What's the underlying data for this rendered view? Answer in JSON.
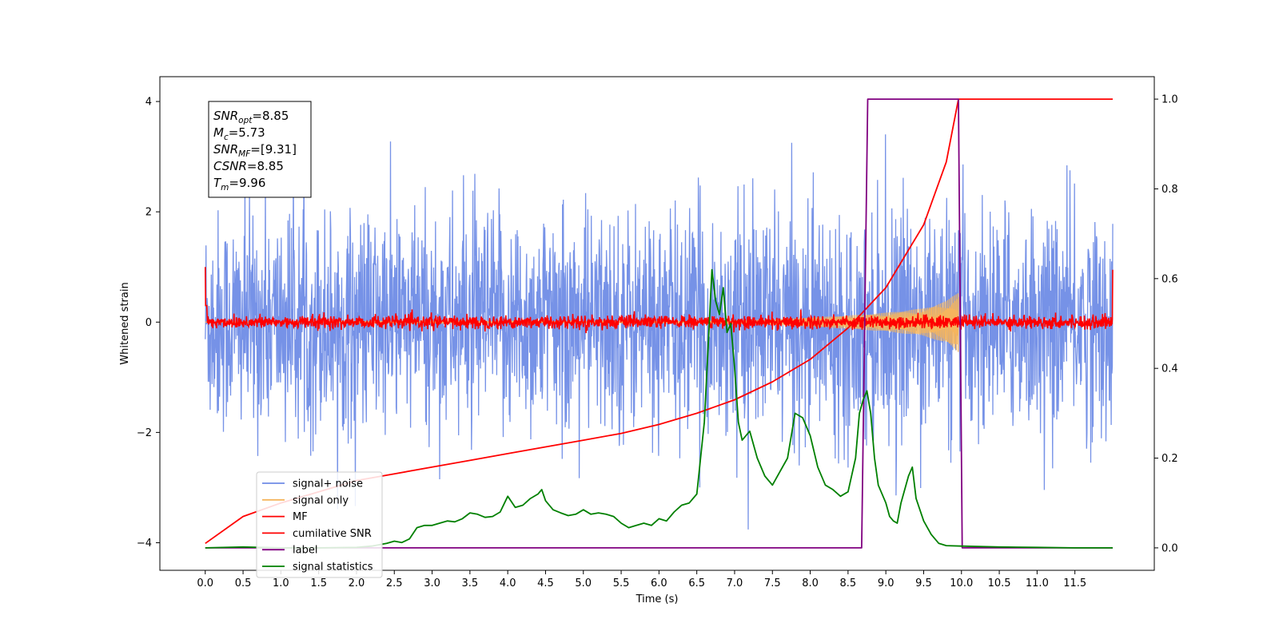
{
  "chart_data": {
    "type": "line",
    "xlabel": "Time (s)",
    "ylabel": "Whitened strain",
    "xlim": [
      -0.6,
      12.55
    ],
    "ylim": [
      -4.5,
      4.45
    ],
    "y2lim": [
      -0.05,
      1.05
    ],
    "x_ticks": [
      0.0,
      0.5,
      1.0,
      1.5,
      2.0,
      2.5,
      3.0,
      3.5,
      4.0,
      4.5,
      5.0,
      5.5,
      6.0,
      6.5,
      7.0,
      7.5,
      8.0,
      8.5,
      9.0,
      9.5,
      10.0,
      10.5,
      11.0,
      11.5
    ],
    "x_tick_labels": [
      "0.0",
      "0.5",
      "1.0",
      "1.5",
      "2.0",
      "2.5",
      "3.0",
      "3.5",
      "4.0",
      "4.5",
      "5.0",
      "5.5",
      "6.0",
      "6.5",
      "7.0",
      "7.5",
      "8.0",
      "8.5",
      "9.0",
      "9.5",
      "10.0",
      "10.5",
      "11.0",
      "11.5"
    ],
    "y_ticks": [
      -4,
      -2,
      0,
      2,
      4
    ],
    "y_tick_labels": [
      "−4",
      "−2",
      "0",
      "2",
      "4"
    ],
    "y2_ticks": [
      0.0,
      0.2,
      0.4,
      0.6,
      0.8,
      1.0
    ],
    "y2_tick_labels": [
      "0.0",
      "0.2",
      "0.4",
      "0.6",
      "0.8",
      "1.0"
    ],
    "grid": false,
    "legend_position": "lower-left",
    "annotation": {
      "lines": [
        {
          "base": "SNR",
          "sub": "opt",
          "value": "=8.85"
        },
        {
          "base": "M",
          "sub": "c",
          "value": "=5.73"
        },
        {
          "base": "SNR",
          "sub": "MF",
          "value": "=[9.31]"
        },
        {
          "base": "CSNR",
          "sub": "",
          "value": "=8.85"
        },
        {
          "base": "T",
          "sub": "m",
          "value": "=9.96"
        }
      ]
    },
    "series": [
      {
        "name": "signal+ noise",
        "color": "#6f8ce6",
        "axis": "left",
        "kind": "noise",
        "x_range": [
          0.0,
          12.0
        ],
        "approx_envelope": {
          "typical_max": 2.6,
          "typical_min": -2.4,
          "peak_max": 4.05,
          "peak_min": -4.2
        }
      },
      {
        "name": "signal only",
        "color": "#f5b55e",
        "axis": "left",
        "kind": "chirp",
        "x_range": [
          0.0,
          9.96
        ],
        "approx_amplitude": [
          [
            6.5,
            0.02
          ],
          [
            7.5,
            0.05
          ],
          [
            8.5,
            0.12
          ],
          [
            9.0,
            0.17
          ],
          [
            9.5,
            0.25
          ],
          [
            9.8,
            0.38
          ],
          [
            9.96,
            0.55
          ]
        ]
      },
      {
        "name": "MF",
        "color": "#ff0000",
        "axis": "left",
        "kind": "noise",
        "x_range": [
          0.0,
          12.0
        ],
        "approx_envelope": {
          "typical_max": 0.15,
          "typical_min": -0.12,
          "start_value": 1.0,
          "end_value": 0.95
        }
      },
      {
        "name": "cumilative SNR",
        "color": "#ff0000",
        "axis": "right",
        "points": [
          [
            0.0,
            0.01
          ],
          [
            0.5,
            0.07
          ],
          [
            1.0,
            0.1
          ],
          [
            1.5,
            0.125
          ],
          [
            2.0,
            0.15
          ],
          [
            2.5,
            0.165
          ],
          [
            3.0,
            0.18
          ],
          [
            3.5,
            0.195
          ],
          [
            4.0,
            0.21
          ],
          [
            4.5,
            0.225
          ],
          [
            5.0,
            0.24
          ],
          [
            5.5,
            0.255
          ],
          [
            6.0,
            0.275
          ],
          [
            6.5,
            0.3
          ],
          [
            7.0,
            0.33
          ],
          [
            7.5,
            0.37
          ],
          [
            8.0,
            0.42
          ],
          [
            8.5,
            0.49
          ],
          [
            9.0,
            0.58
          ],
          [
            9.5,
            0.72
          ],
          [
            9.8,
            0.86
          ],
          [
            9.96,
            1.0
          ],
          [
            10.0,
            1.0
          ],
          [
            11.0,
            1.0
          ],
          [
            12.0,
            1.0
          ]
        ]
      },
      {
        "name": "label",
        "color": "#800080",
        "axis": "right",
        "points": [
          [
            0.0,
            0.0
          ],
          [
            8.68,
            0.0
          ],
          [
            8.76,
            1.0
          ],
          [
            9.96,
            1.0
          ],
          [
            10.01,
            0.0
          ],
          [
            12.0,
            0.0
          ]
        ]
      },
      {
        "name": "signal statistics",
        "color": "#008000",
        "axis": "right",
        "points": [
          [
            0.0,
            0.0
          ],
          [
            0.5,
            0.002
          ],
          [
            1.0,
            0.0
          ],
          [
            1.5,
            0.0
          ],
          [
            2.0,
            0.001
          ],
          [
            2.2,
            0.004
          ],
          [
            2.4,
            0.01
          ],
          [
            2.5,
            0.015
          ],
          [
            2.6,
            0.012
          ],
          [
            2.7,
            0.02
          ],
          [
            2.8,
            0.045
          ],
          [
            2.9,
            0.05
          ],
          [
            3.0,
            0.05
          ],
          [
            3.1,
            0.055
          ],
          [
            3.2,
            0.06
          ],
          [
            3.3,
            0.058
          ],
          [
            3.4,
            0.065
          ],
          [
            3.5,
            0.078
          ],
          [
            3.6,
            0.075
          ],
          [
            3.7,
            0.068
          ],
          [
            3.8,
            0.07
          ],
          [
            3.9,
            0.08
          ],
          [
            4.0,
            0.115
          ],
          [
            4.1,
            0.09
          ],
          [
            4.2,
            0.095
          ],
          [
            4.3,
            0.11
          ],
          [
            4.4,
            0.12
          ],
          [
            4.45,
            0.13
          ],
          [
            4.5,
            0.105
          ],
          [
            4.6,
            0.085
          ],
          [
            4.7,
            0.078
          ],
          [
            4.8,
            0.072
          ],
          [
            4.9,
            0.075
          ],
          [
            5.0,
            0.085
          ],
          [
            5.1,
            0.075
          ],
          [
            5.2,
            0.078
          ],
          [
            5.3,
            0.075
          ],
          [
            5.4,
            0.07
          ],
          [
            5.5,
            0.055
          ],
          [
            5.6,
            0.045
          ],
          [
            5.7,
            0.05
          ],
          [
            5.8,
            0.055
          ],
          [
            5.9,
            0.05
          ],
          [
            6.0,
            0.065
          ],
          [
            6.1,
            0.06
          ],
          [
            6.2,
            0.08
          ],
          [
            6.3,
            0.095
          ],
          [
            6.4,
            0.1
          ],
          [
            6.5,
            0.12
          ],
          [
            6.55,
            0.2
          ],
          [
            6.6,
            0.28
          ],
          [
            6.65,
            0.45
          ],
          [
            6.7,
            0.62
          ],
          [
            6.75,
            0.55
          ],
          [
            6.8,
            0.52
          ],
          [
            6.85,
            0.58
          ],
          [
            6.9,
            0.48
          ],
          [
            6.95,
            0.5
          ],
          [
            7.0,
            0.4
          ],
          [
            7.05,
            0.28
          ],
          [
            7.1,
            0.24
          ],
          [
            7.2,
            0.26
          ],
          [
            7.3,
            0.2
          ],
          [
            7.4,
            0.16
          ],
          [
            7.5,
            0.14
          ],
          [
            7.6,
            0.17
          ],
          [
            7.7,
            0.2
          ],
          [
            7.8,
            0.3
          ],
          [
            7.9,
            0.29
          ],
          [
            8.0,
            0.25
          ],
          [
            8.1,
            0.18
          ],
          [
            8.2,
            0.14
          ],
          [
            8.3,
            0.13
          ],
          [
            8.4,
            0.115
          ],
          [
            8.5,
            0.125
          ],
          [
            8.6,
            0.2
          ],
          [
            8.65,
            0.3
          ],
          [
            8.7,
            0.33
          ],
          [
            8.75,
            0.35
          ],
          [
            8.8,
            0.3
          ],
          [
            8.85,
            0.2
          ],
          [
            8.9,
            0.14
          ],
          [
            9.0,
            0.1
          ],
          [
            9.05,
            0.07
          ],
          [
            9.1,
            0.06
          ],
          [
            9.15,
            0.055
          ],
          [
            9.2,
            0.1
          ],
          [
            9.3,
            0.16
          ],
          [
            9.35,
            0.18
          ],
          [
            9.4,
            0.11
          ],
          [
            9.5,
            0.06
          ],
          [
            9.6,
            0.03
          ],
          [
            9.7,
            0.01
          ],
          [
            9.8,
            0.005
          ],
          [
            10.0,
            0.004
          ],
          [
            10.5,
            0.002
          ],
          [
            11.0,
            0.001
          ],
          [
            11.5,
            0.0
          ],
          [
            12.0,
            0.0
          ]
        ]
      }
    ]
  }
}
